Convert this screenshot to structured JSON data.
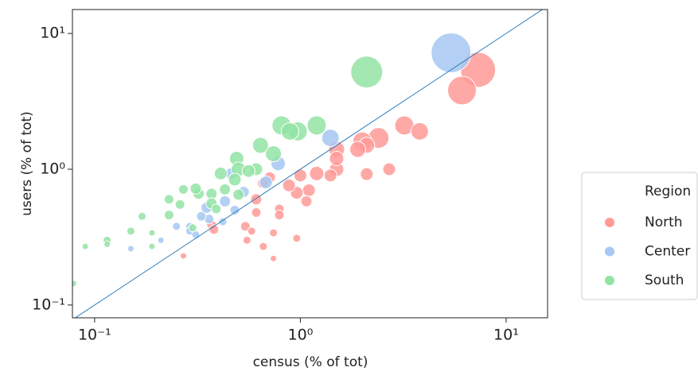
{
  "chart_data": {
    "type": "scatter",
    "xlabel": "census (% of tot)",
    "ylabel": "users (% of tot)",
    "xscale": "log",
    "yscale": "log",
    "xlim": [
      0.078,
      15.9
    ],
    "ylim": [
      0.0805,
      15.0
    ],
    "xticks": [
      {
        "value": 0.1,
        "label": "10⁻¹"
      },
      {
        "value": 1,
        "label": "10⁰"
      },
      {
        "value": 10,
        "label": "10¹"
      }
    ],
    "yticks": [
      {
        "value": 0.1,
        "label": "10⁻¹"
      },
      {
        "value": 1,
        "label": "10⁰"
      },
      {
        "value": 10,
        "label": "10¹"
      }
    ],
    "grid": false,
    "legend_title": "Region",
    "legend_position": "right",
    "reference_line": {
      "x": [
        0.078,
        15.9
      ],
      "y": [
        0.078,
        15.9
      ],
      "color": "#2b7bba"
    },
    "series": [
      {
        "name": "North",
        "color": "#ff9a98",
        "x": [
          7.3,
          6.1,
          3.2,
          3.8,
          2.4,
          2.0,
          2.1,
          1.9,
          1.5,
          1.5,
          1.5,
          1.2,
          2.7,
          2.1,
          1.4,
          1.0,
          1.1,
          0.96,
          1.07,
          0.88,
          0.71,
          0.66,
          0.61,
          0.79,
          0.79,
          0.54,
          0.61,
          0.55,
          0.58,
          0.74,
          0.66,
          0.96,
          0.37,
          0.38,
          0.27,
          0.74
        ],
        "values": [
          5.4,
          3.8,
          2.1,
          1.9,
          1.7,
          1.6,
          1.5,
          1.4,
          1.4,
          1.0,
          1.2,
          0.93,
          1.0,
          0.92,
          0.9,
          0.9,
          0.7,
          0.67,
          0.58,
          0.76,
          0.87,
          0.79,
          0.6,
          0.51,
          0.46,
          0.38,
          0.48,
          0.3,
          0.35,
          0.34,
          0.27,
          0.31,
          0.39,
          0.36,
          0.23,
          0.22
        ],
        "sizes": [
          484,
          324,
          144,
          121,
          169,
          144,
          100,
          100,
          100,
          81,
          81,
          81,
          64,
          64,
          64,
          64,
          64,
          64,
          49,
          64,
          49,
          49,
          49,
          36,
          36,
          36,
          36,
          25,
          25,
          25,
          25,
          25,
          36,
          36,
          16,
          16
        ]
      },
      {
        "name": "Center",
        "color": "#a6c8f2",
        "x": [
          5.4,
          1.4,
          0.78,
          0.68,
          0.53,
          0.46,
          0.48,
          0.43,
          0.35,
          0.36,
          0.33,
          0.29,
          0.25,
          0.29,
          0.31,
          0.21,
          0.15,
          0.42
        ],
        "values": [
          7.2,
          1.7,
          1.1,
          0.8,
          0.68,
          0.93,
          0.5,
          0.58,
          0.52,
          0.43,
          0.45,
          0.38,
          0.38,
          0.35,
          0.33,
          0.3,
          0.26,
          0.41
        ],
        "sizes": [
          625,
          121,
          81,
          64,
          49,
          49,
          36,
          49,
          49,
          36,
          36,
          25,
          25,
          25,
          25,
          16,
          16,
          25
        ]
      },
      {
        "name": "South",
        "color": "#93e3a4",
        "x": [
          2.1,
          1.2,
          0.97,
          0.81,
          0.89,
          0.74,
          0.64,
          0.49,
          0.5,
          0.61,
          0.56,
          0.48,
          0.41,
          0.43,
          0.37,
          0.32,
          0.31,
          0.27,
          0.23,
          0.23,
          0.26,
          0.5,
          0.37,
          0.39,
          0.17,
          0.15,
          0.19,
          0.19,
          0.115,
          0.115,
          0.09,
          0.079,
          0.3
        ],
        "values": [
          5.2,
          2.1,
          1.9,
          2.1,
          1.9,
          1.3,
          1.5,
          1.2,
          1.0,
          1.0,
          0.97,
          0.84,
          0.93,
          0.71,
          0.66,
          0.66,
          0.72,
          0.71,
          0.6,
          0.46,
          0.55,
          0.65,
          0.56,
          0.51,
          0.45,
          0.35,
          0.34,
          0.27,
          0.3,
          0.28,
          0.27,
          0.144,
          0.37
        ],
        "sizes": [
          400,
          144,
          144,
          144,
          121,
          100,
          100,
          81,
          81,
          64,
          64,
          64,
          64,
          49,
          49,
          49,
          49,
          36,
          36,
          36,
          36,
          49,
          49,
          36,
          25,
          25,
          16,
          16,
          25,
          16,
          16,
          16,
          25
        ]
      }
    ]
  }
}
